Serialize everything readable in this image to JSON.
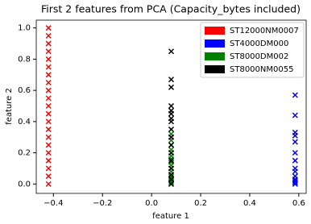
{
  "chart_data": {
    "type": "scatter",
    "title": "First 2 features from PCA (Capacity_bytes included)",
    "x_label": "feature 1",
    "y_label": "feature 2",
    "xlim": [
      -0.47,
      0.63
    ],
    "ylim": [
      -0.06,
      1.05
    ],
    "xticks": [
      {
        "value": -0.4,
        "label": "−0.4"
      },
      {
        "value": -0.2,
        "label": "−0.2"
      },
      {
        "value": 0,
        "label": "0.0"
      },
      {
        "value": 0.2,
        "label": "0.2"
      },
      {
        "value": 0.4,
        "label": "0.4"
      },
      {
        "value": 0.6,
        "label": "0.6"
      }
    ],
    "yticks": [
      {
        "value": 0,
        "label": "0.0"
      },
      {
        "value": 0.2,
        "label": "0.2"
      },
      {
        "value": 0.4,
        "label": "0.4"
      },
      {
        "value": 0.6,
        "label": "0.6"
      },
      {
        "value": 0.8,
        "label": "0.8"
      },
      {
        "value": 1,
        "label": "1.0"
      }
    ],
    "legend": "upper right",
    "marker": "x",
    "series": [
      {
        "name": "ST12000NM0007",
        "color": "#ff0000",
        "x": [
          -0.42,
          -0.42,
          -0.42,
          -0.42,
          -0.42,
          -0.42,
          -0.42,
          -0.42,
          -0.42,
          -0.42,
          -0.42,
          -0.42,
          -0.42,
          -0.42,
          -0.42,
          -0.42,
          -0.42,
          -0.42,
          -0.42,
          -0.42,
          -0.42
        ],
        "values": [
          0,
          0.05,
          0.1,
          0.15,
          0.2,
          0.25,
          0.3,
          0.35,
          0.4,
          0.45,
          0.5,
          0.55,
          0.6,
          0.65,
          0.7,
          0.75,
          0.8,
          0.85,
          0.9,
          0.95,
          1.0
        ]
      },
      {
        "name": "ST4000DM000",
        "color": "#0000ff",
        "x": [
          0.585,
          0.585,
          0.585,
          0.585,
          0.585,
          0.585,
          0.585,
          0.585,
          0.585,
          0.585,
          0.585,
          0.585,
          0.585,
          0.585
        ],
        "values": [
          0,
          0.01,
          0.02,
          0.03,
          0.05,
          0.08,
          0.1,
          0.15,
          0.2,
          0.27,
          0.31,
          0.33,
          0.44,
          0.57
        ]
      },
      {
        "name": "ST8000DM002",
        "color": "#008000",
        "x": [
          0.08,
          0.08,
          0.08,
          0.08,
          0.08,
          0.08,
          0.08,
          0.08,
          0.08,
          0.08,
          0.08,
          0.08,
          0.08,
          0.08,
          0.08,
          0.08,
          0.08,
          0.08,
          0.08
        ],
        "values": [
          0,
          0.01,
          0.02,
          0.03,
          0.04,
          0.05,
          0.06,
          0.08,
          0.1,
          0.12,
          0.14,
          0.16,
          0.18,
          0.2,
          0.22,
          0.25,
          0.28,
          0.3,
          0.32
        ]
      },
      {
        "name": "ST8000NM0055",
        "color": "#000000",
        "x": [
          0.08,
          0.08,
          0.08,
          0.08,
          0.08,
          0.08,
          0.08,
          0.08,
          0.08,
          0.08,
          0.08,
          0.08,
          0.08,
          0.08,
          0.08,
          0.08,
          0.08
        ],
        "values": [
          0,
          0.03,
          0.06,
          0.1,
          0.15,
          0.2,
          0.25,
          0.3,
          0.35,
          0.4,
          0.42,
          0.45,
          0.47,
          0.5,
          0.62,
          0.67,
          0.85
        ]
      }
    ]
  }
}
